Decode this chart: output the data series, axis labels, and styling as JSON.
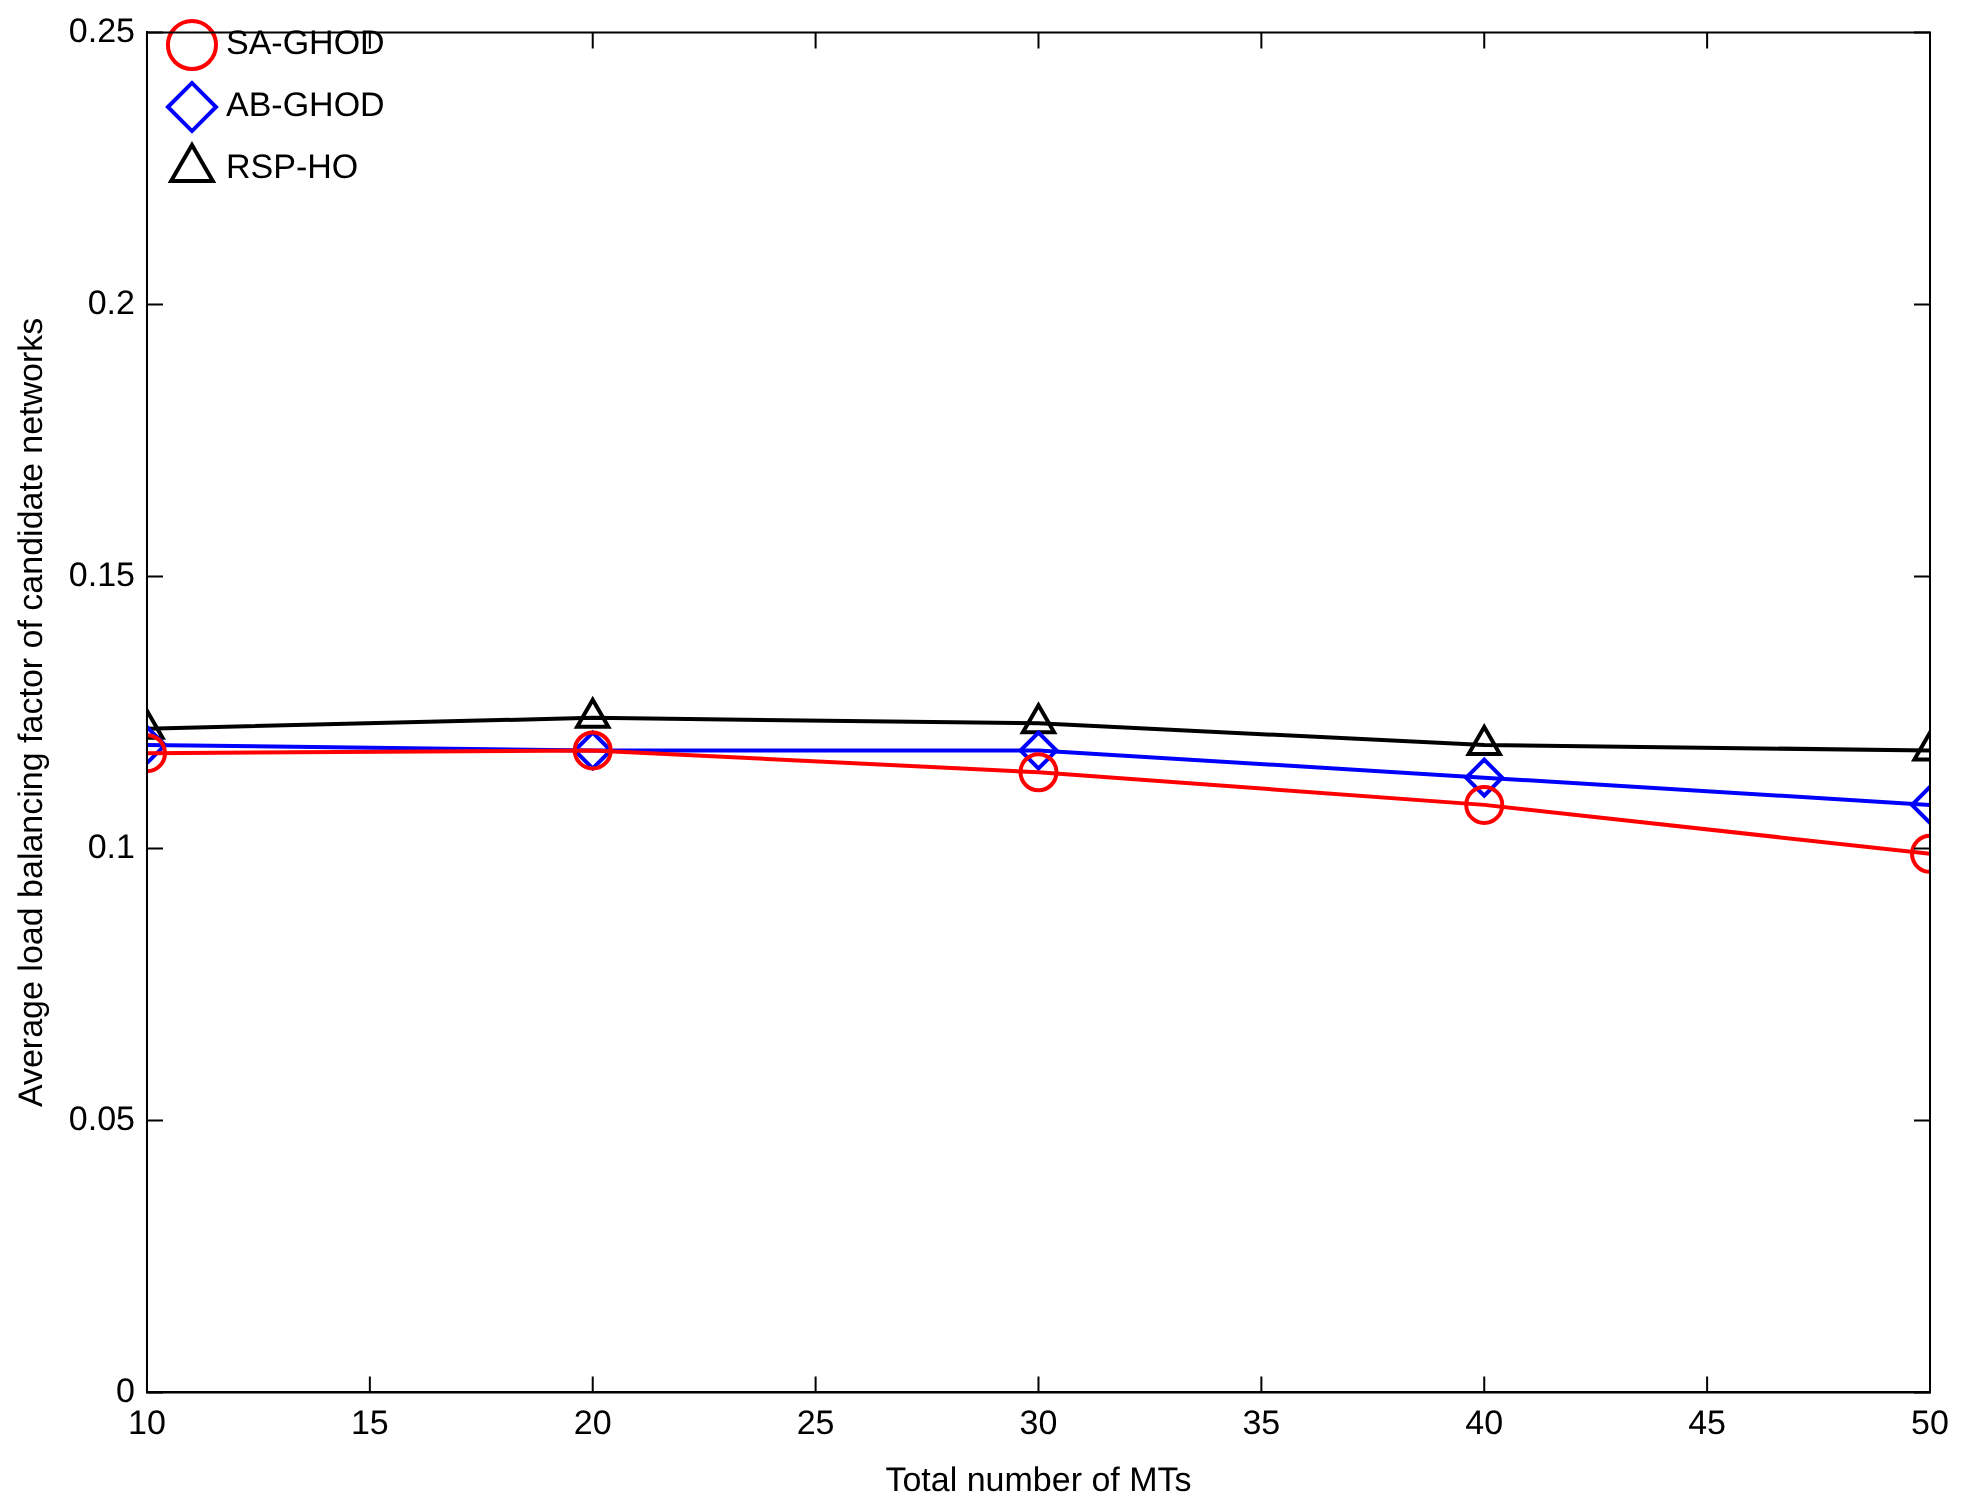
{
  "chart_data": {
    "type": "line",
    "xlabel": "Total number of MTs",
    "ylabel": "Average load balancing factor of candidate networks",
    "x": [
      10,
      20,
      30,
      40,
      50
    ],
    "series": [
      {
        "name": "SA-GHOD",
        "color": "#ff0000",
        "marker": "circle",
        "values": [
          0.1175,
          0.118,
          0.114,
          0.108,
          0.099
        ]
      },
      {
        "name": "AB-GHOD",
        "color": "#0000ff",
        "marker": "diamond",
        "values": [
          0.119,
          0.118,
          0.118,
          0.113,
          0.108
        ]
      },
      {
        "name": "RSP-HO",
        "color": "#000000",
        "marker": "triangle",
        "values": [
          0.122,
          0.124,
          0.123,
          0.119,
          0.118
        ]
      }
    ],
    "xlim": [
      10,
      50
    ],
    "xticks": [
      10,
      15,
      20,
      25,
      30,
      35,
      40,
      45,
      50
    ],
    "ylim": [
      0,
      0.25
    ],
    "yticks": [
      0,
      0.05,
      0.1,
      0.15,
      0.2,
      0.25
    ],
    "grid": false,
    "legend": "top left",
    "line_style": "solid"
  }
}
